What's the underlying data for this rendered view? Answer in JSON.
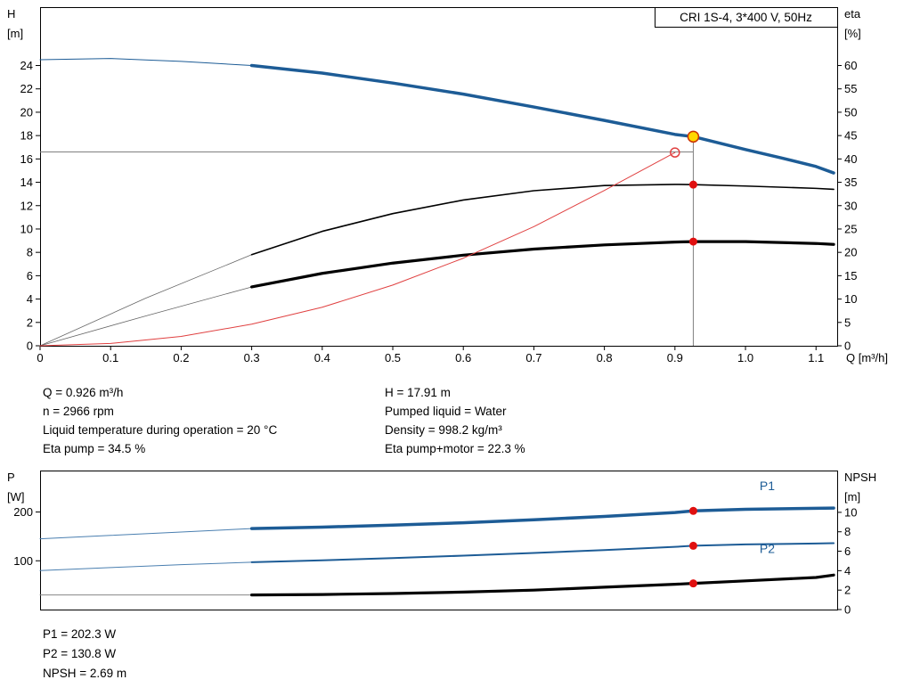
{
  "chart_data": [
    {
      "type": "line",
      "id": "qh-eta-chart",
      "title": "CRI 1S-4, 3*400 V, 50Hz",
      "x_axis": {
        "label": "Q [m³/h]",
        "min": 0,
        "max": 1.13,
        "ticks": [
          [
            0,
            "0"
          ],
          [
            0.1,
            "0.1"
          ],
          [
            0.2,
            "0.2"
          ],
          [
            0.3,
            "0.3"
          ],
          [
            0.4,
            "0.4"
          ],
          [
            0.5,
            "0.5"
          ],
          [
            0.6,
            "0.6"
          ],
          [
            0.7,
            "0.7"
          ],
          [
            0.8,
            "0.8"
          ],
          [
            0.9,
            "0.9"
          ],
          [
            1.0,
            "1.0"
          ],
          [
            1.1,
            "1.1"
          ]
        ]
      },
      "y_left": {
        "label_lines": [
          "H",
          "[m]"
        ],
        "min": 0,
        "max": 29,
        "ticks": [
          [
            0,
            "0"
          ],
          [
            2,
            "2"
          ],
          [
            4,
            "4"
          ],
          [
            6,
            "6"
          ],
          [
            8,
            "8"
          ],
          [
            10,
            "10"
          ],
          [
            12,
            "12"
          ],
          [
            14,
            "14"
          ],
          [
            16,
            "16"
          ],
          [
            18,
            "18"
          ],
          [
            20,
            "20"
          ],
          [
            22,
            "22"
          ],
          [
            24,
            "24"
          ]
        ]
      },
      "y_right": {
        "label_lines": [
          "eta",
          "[%]"
        ],
        "min": 0,
        "max": 72.5,
        "ticks": [
          [
            0,
            "0"
          ],
          [
            5,
            "5"
          ],
          [
            10,
            "10"
          ],
          [
            15,
            "15"
          ],
          [
            20,
            "20"
          ],
          [
            25,
            "25"
          ],
          [
            30,
            "30"
          ],
          [
            35,
            "35"
          ],
          [
            40,
            "40"
          ],
          [
            45,
            "45"
          ],
          [
            50,
            "50"
          ],
          [
            55,
            "55"
          ],
          [
            60,
            "60"
          ]
        ]
      },
      "ref_lines": [
        {
          "orient": "h",
          "axis": "left",
          "v": 16.6,
          "from": 0,
          "to": 0.926,
          "color": "#808080",
          "width": 1
        },
        {
          "orient": "v",
          "axis": "left",
          "v": 0.926,
          "from": 0,
          "to": 17.91,
          "color": "#808080",
          "width": 1
        }
      ],
      "series": [
        {
          "name": "qh-curve-lead",
          "axis": "left",
          "color": "#1d5c96",
          "width": 1,
          "points": [
            [
              0,
              24.5
            ],
            [
              0.1,
              24.6
            ],
            [
              0.2,
              24.35
            ],
            [
              0.3,
              24.0
            ]
          ]
        },
        {
          "name": "qh-curve",
          "axis": "left",
          "color": "#1d5c96",
          "width": 3.5,
          "points": [
            [
              0.3,
              24.0
            ],
            [
              0.4,
              23.35
            ],
            [
              0.5,
              22.5
            ],
            [
              0.6,
              21.55
            ],
            [
              0.7,
              20.45
            ],
            [
              0.8,
              19.3
            ],
            [
              0.9,
              18.1
            ],
            [
              0.926,
              17.91
            ],
            [
              1.0,
              16.8
            ],
            [
              1.05,
              16.1
            ],
            [
              1.1,
              15.35
            ],
            [
              1.125,
              14.8
            ]
          ]
        },
        {
          "name": "eta-pump-lead",
          "axis": "right",
          "color": "#666666",
          "width": 0.8,
          "points": [
            [
              0,
              0
            ],
            [
              0.15,
              10.2
            ],
            [
              0.3,
              19.5
            ]
          ]
        },
        {
          "name": "eta-pump",
          "axis": "right",
          "color": "#000000",
          "width": 1.6,
          "points": [
            [
              0.3,
              19.5
            ],
            [
              0.4,
              24.5
            ],
            [
              0.5,
              28.3
            ],
            [
              0.6,
              31.2
            ],
            [
              0.7,
              33.2
            ],
            [
              0.8,
              34.3
            ],
            [
              0.9,
              34.55
            ],
            [
              0.926,
              34.5
            ],
            [
              1.0,
              34.2
            ],
            [
              1.1,
              33.7
            ],
            [
              1.125,
              33.5
            ]
          ]
        },
        {
          "name": "eta-pump-motor-lead",
          "axis": "right",
          "color": "#666666",
          "width": 0.8,
          "points": [
            [
              0,
              0
            ],
            [
              0.15,
              6.4
            ],
            [
              0.3,
              12.6
            ]
          ]
        },
        {
          "name": "eta-pump-motor",
          "axis": "right",
          "color": "#000000",
          "width": 3.2,
          "points": [
            [
              0.3,
              12.6
            ],
            [
              0.4,
              15.5
            ],
            [
              0.5,
              17.7
            ],
            [
              0.6,
              19.4
            ],
            [
              0.7,
              20.7
            ],
            [
              0.8,
              21.6
            ],
            [
              0.9,
              22.2
            ],
            [
              0.926,
              22.3
            ],
            [
              1.0,
              22.3
            ],
            [
              1.1,
              21.9
            ],
            [
              1.125,
              21.7
            ]
          ]
        },
        {
          "name": "system-curve",
          "axis": "left",
          "color": "#e04040",
          "width": 1,
          "points": [
            [
              0,
              0
            ],
            [
              0.1,
              0.2
            ],
            [
              0.2,
              0.8
            ],
            [
              0.3,
              1.85
            ],
            [
              0.4,
              3.3
            ],
            [
              0.5,
              5.2
            ],
            [
              0.6,
              7.5
            ],
            [
              0.7,
              10.2
            ],
            [
              0.8,
              13.3
            ],
            [
              0.9,
              16.55
            ]
          ]
        }
      ],
      "markers": [
        {
          "name": "requested-duty-point",
          "x": 0.9,
          "y": 16.55,
          "axis": "left",
          "r": 5,
          "fill": "none",
          "stroke": "#e04040",
          "sw": 1.5
        },
        {
          "name": "eta-pump-point",
          "x": 0.926,
          "y": 34.5,
          "axis": "right",
          "r": 4.5,
          "fill": "#e01010"
        },
        {
          "name": "eta-pump-motor-point",
          "x": 0.926,
          "y": 22.3,
          "axis": "right",
          "r": 4.5,
          "fill": "#e01010"
        },
        {
          "name": "duty-point",
          "x": 0.926,
          "y": 17.91,
          "axis": "left",
          "r": 6,
          "fill": "#ffd700",
          "stroke": "#cc3300",
          "sw": 1.5
        }
      ],
      "labels": []
    },
    {
      "type": "line",
      "id": "power-npsh-chart",
      "title": "",
      "x_axis": {
        "label": "",
        "min": 0,
        "max": 1.13,
        "ticks": []
      },
      "y_left": {
        "label_lines": [
          "P",
          "[W]"
        ],
        "min": 0,
        "max": 285,
        "ticks": [
          [
            100,
            "100"
          ],
          [
            200,
            "200"
          ]
        ]
      },
      "y_right": {
        "label_lines": [
          "NPSH",
          "[m]"
        ],
        "min": 0,
        "max": 14.3,
        "ticks": [
          [
            0,
            "0"
          ],
          [
            2,
            "2"
          ],
          [
            4,
            "4"
          ],
          [
            6,
            "6"
          ],
          [
            8,
            "8"
          ],
          [
            10,
            "10"
          ]
        ]
      },
      "ref_lines": [],
      "series": [
        {
          "name": "p1-lead",
          "axis": "left",
          "color": "#4a7fb0",
          "width": 1,
          "points": [
            [
              0,
              145
            ],
            [
              0.1,
              152
            ],
            [
              0.2,
              159
            ],
            [
              0.3,
              166
            ]
          ]
        },
        {
          "name": "p1",
          "axis": "left",
          "color": "#1d5c96",
          "width": 3.5,
          "points": [
            [
              0.3,
              166
            ],
            [
              0.4,
              169
            ],
            [
              0.5,
              173
            ],
            [
              0.6,
              178
            ],
            [
              0.7,
              184
            ],
            [
              0.8,
              191
            ],
            [
              0.9,
              199
            ],
            [
              0.926,
              202.3
            ],
            [
              1.0,
              205.5
            ],
            [
              1.1,
              207.5
            ],
            [
              1.125,
              208
            ]
          ]
        },
        {
          "name": "p2-lead",
          "axis": "left",
          "color": "#4a7fb0",
          "width": 1,
          "points": [
            [
              0,
              80
            ],
            [
              0.1,
              86
            ],
            [
              0.2,
              92
            ],
            [
              0.3,
              97
            ]
          ]
        },
        {
          "name": "p2",
          "axis": "left",
          "color": "#1d5c96",
          "width": 2,
          "points": [
            [
              0.3,
              97
            ],
            [
              0.4,
              101
            ],
            [
              0.5,
              105.5
            ],
            [
              0.6,
              110.5
            ],
            [
              0.7,
              116
            ],
            [
              0.8,
              122
            ],
            [
              0.9,
              128.5
            ],
            [
              0.926,
              130.8
            ],
            [
              1.0,
              133.5
            ],
            [
              1.1,
              135.5
            ],
            [
              1.125,
              136
            ]
          ]
        },
        {
          "name": "npsh-lead",
          "axis": "right",
          "color": "#888888",
          "width": 1,
          "points": [
            [
              0,
              1.5
            ],
            [
              0.3,
              1.5
            ]
          ]
        },
        {
          "name": "npsh",
          "axis": "right",
          "color": "#000000",
          "width": 3.2,
          "points": [
            [
              0.3,
              1.5
            ],
            [
              0.4,
              1.55
            ],
            [
              0.5,
              1.65
            ],
            [
              0.6,
              1.8
            ],
            [
              0.7,
              2.0
            ],
            [
              0.8,
              2.3
            ],
            [
              0.9,
              2.6
            ],
            [
              0.926,
              2.69
            ],
            [
              1.0,
              2.95
            ],
            [
              1.1,
              3.3
            ],
            [
              1.125,
              3.55
            ]
          ]
        }
      ],
      "markers": [
        {
          "name": "p1-point",
          "x": 0.926,
          "y": 202.3,
          "axis": "left",
          "r": 4.5,
          "fill": "#e01010"
        },
        {
          "name": "p2-point",
          "x": 0.926,
          "y": 130.8,
          "axis": "left",
          "r": 4.5,
          "fill": "#e01010"
        },
        {
          "name": "npsh-point",
          "x": 0.926,
          "y": 2.69,
          "axis": "right",
          "r": 4.5,
          "fill": "#e01010"
        }
      ],
      "labels": [
        {
          "text": "P1",
          "x": 1.02,
          "y": 245,
          "axis": "left",
          "color": "#1d5c96",
          "size": 14
        },
        {
          "text": "P2",
          "x": 1.02,
          "y": 116,
          "axis": "left",
          "color": "#1d5c96",
          "size": 14
        }
      ]
    }
  ],
  "info": {
    "left": [
      "Q = 0.926 m³/h",
      "n = 2966 rpm",
      "Liquid temperature during operation = 20 °C",
      "Eta pump = 34.5 %"
    ],
    "right": [
      "H = 17.91 m",
      "Pumped liquid = Water",
      "Density = 998.2 kg/m³",
      "Eta pump+motor = 22.3 %"
    ],
    "bottom": [
      "P1 = 202.3 W",
      "P2 = 130.8 W",
      "NPSH = 2.69 m"
    ]
  }
}
